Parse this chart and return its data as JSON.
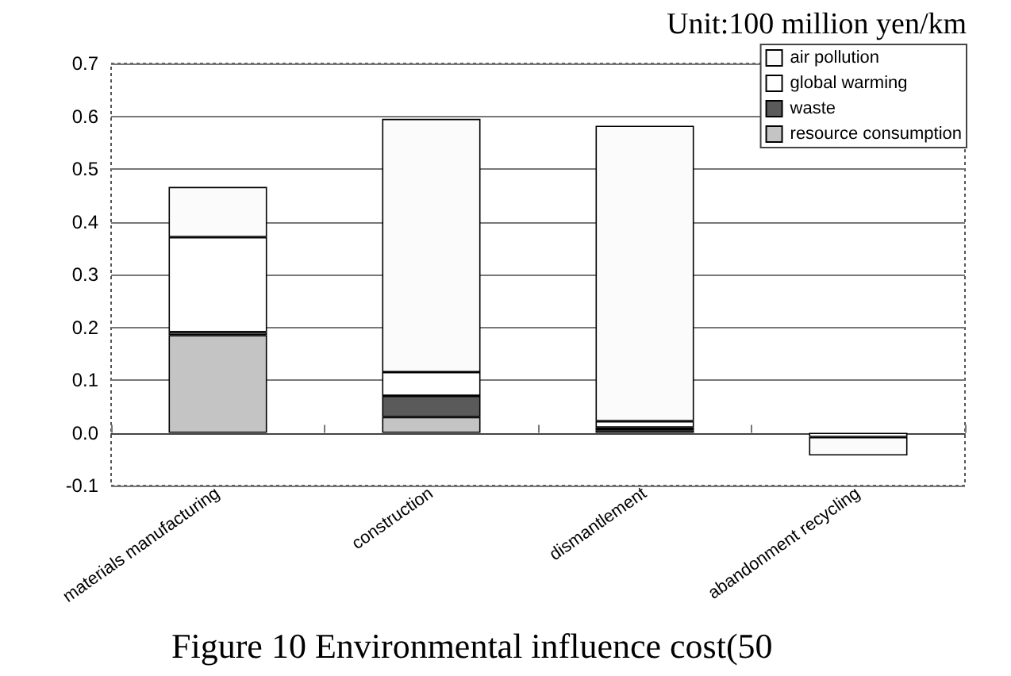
{
  "chart_data": {
    "type": "bar",
    "stacked": true,
    "categories": [
      "materials manufacturing",
      "construction",
      "dismantlement",
      "abandonment recycling"
    ],
    "series": [
      {
        "name": "resource consumption",
        "color": "#c4c4c4",
        "values": [
          0.185,
          0.03,
          0.005,
          null
        ]
      },
      {
        "name": "waste",
        "color": "#5a5a5a",
        "values": [
          0.006,
          0.04,
          0.005,
          null
        ]
      },
      {
        "name": "global warming",
        "color": "#ffffff",
        "values": [
          0.18,
          0.045,
          0.012,
          -0.008
        ]
      },
      {
        "name": "air pollution",
        "color": "#fbfbfb",
        "values": [
          0.095,
          0.48,
          0.56,
          -0.035
        ]
      }
    ],
    "ylim": [
      -0.1,
      0.7
    ],
    "yticks": [
      {
        "value": -0.1,
        "label": "-0.1"
      },
      {
        "value": 0,
        "label": "0.0"
      },
      {
        "value": 0.1,
        "label": "0.1"
      },
      {
        "value": 0.2,
        "label": "0.2"
      },
      {
        "value": 0.3,
        "label": "0.3"
      },
      {
        "value": 0.4,
        "label": "0.4"
      },
      {
        "value": 0.5,
        "label": "0.5"
      },
      {
        "value": 0.6,
        "label": "0.6"
      },
      {
        "value": 0.7,
        "label": "0.7"
      }
    ],
    "grid": "y",
    "legend": "top right",
    "annotations": [
      "Unit:100 million yen/km",
      "Figure 10 Environmental influence cost(50"
    ]
  }
}
